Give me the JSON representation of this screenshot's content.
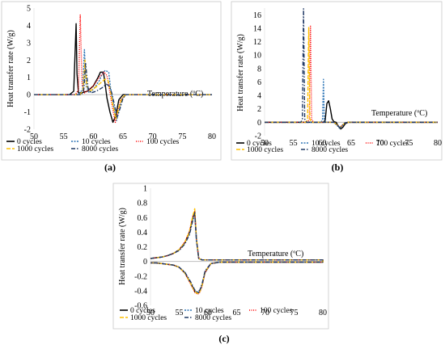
{
  "colors": {
    "0 cycles": "#000000",
    "10 cycles": "#2e75b6",
    "100 cycles": "#ff0000",
    "1000 cycles": "#ffc000",
    "8000 cycles": "#1f3864"
  },
  "chart_data": [
    {
      "type": "line",
      "caption": "(a)",
      "xlabel": "Temperature (ºC)",
      "ylabel": "Heat transfer rate (W/g)",
      "xlim": [
        50,
        80
      ],
      "ylim": [
        -2,
        5
      ],
      "xticks": [
        50,
        55,
        60,
        65,
        70,
        75,
        80
      ],
      "yticks": [
        -2,
        -1,
        0,
        1,
        2,
        3,
        4,
        5
      ],
      "series": [
        {
          "name": "0 cycles",
          "dash": "solid",
          "x": [
            50,
            56,
            56.7,
            57.1,
            57.25,
            57.5,
            58,
            59,
            60,
            60.8,
            61.2,
            61.7,
            62,
            62.3,
            62.8,
            63.3,
            63.8,
            64.3,
            65,
            80
          ],
          "y": [
            0,
            0,
            0.2,
            4.1,
            1.2,
            0.1,
            0.1,
            0.2,
            0.5,
            1.0,
            1.3,
            1.3,
            0.6,
            -0.2,
            -1.0,
            -1.6,
            -1.2,
            -0.3,
            0,
            0
          ]
        },
        {
          "name": "10 cycles",
          "dash": "2,1.5",
          "x": [
            50,
            57.5,
            58.2,
            58.5,
            58.8,
            59.3,
            60,
            61,
            61.5,
            62,
            62.6,
            62.9,
            63.4,
            63.9,
            64.3,
            64.8,
            65.5,
            80
          ],
          "y": [
            0,
            0,
            0.3,
            2.6,
            0.5,
            0.1,
            0.3,
            0.8,
            1.2,
            1.4,
            1.3,
            0.4,
            -0.6,
            -1.5,
            -1.0,
            -0.3,
            0,
            0
          ]
        },
        {
          "name": "100 cycles",
          "dash": "1,1.5",
          "x": [
            50,
            57,
            57.5,
            57.8,
            58.1,
            58.5,
            59,
            60,
            61,
            61.8,
            62.3,
            62.7,
            63.2,
            63.7,
            64.1,
            64.6,
            65.5,
            80
          ],
          "y": [
            0,
            0,
            0.3,
            4.6,
            0.6,
            0.1,
            0.2,
            0.5,
            1.0,
            1.3,
            1.1,
            0.3,
            -0.7,
            -1.6,
            -1.0,
            -0.3,
            0,
            0
          ]
        },
        {
          "name": "1000 cycles",
          "dash": "5,2",
          "x": [
            50,
            57.8,
            58.3,
            58.6,
            58.9,
            59.4,
            60.3,
            61.3,
            62,
            62.5,
            62.9,
            63.3,
            63.8,
            64.2,
            64.8,
            65.5,
            80
          ],
          "y": [
            0,
            0,
            0.3,
            2.0,
            0.5,
            0.2,
            0.4,
            0.7,
            0.9,
            0.8,
            0.2,
            -0.6,
            -1.4,
            -0.9,
            -0.2,
            0,
            0
          ]
        },
        {
          "name": "8000 cycles",
          "dash": "5,2,1.5,2",
          "x": [
            50,
            58,
            58.4,
            58.7,
            59.1,
            59.6,
            60.5,
            61.5,
            62.2,
            62.7,
            63.1,
            63.5,
            64,
            64.5,
            65,
            65.5,
            80
          ],
          "y": [
            0,
            0,
            0.3,
            1.8,
            0.4,
            0.1,
            0.2,
            0.4,
            0.6,
            0.5,
            0.1,
            -0.5,
            -1.3,
            -0.8,
            -0.2,
            0,
            0
          ]
        }
      ]
    },
    {
      "type": "line",
      "caption": "(b)",
      "xlabel": "Temperature (ºC)",
      "ylabel": "Heat transfer rate (W/g)",
      "xlim": [
        50,
        80
      ],
      "ylim": [
        -2,
        17
      ],
      "xticks": [
        50,
        55,
        60,
        65,
        70,
        75,
        80
      ],
      "yticks": [
        -2,
        0,
        2,
        4,
        6,
        8,
        10,
        12,
        14,
        16
      ],
      "series": [
        {
          "name": "0 cycles",
          "dash": "solid",
          "x": [
            50,
            60.2,
            60.5,
            60.8,
            61.1,
            61.4,
            61.7,
            62,
            62.4,
            62.8,
            63.2,
            63.6,
            64,
            64.5,
            80
          ],
          "y": [
            0,
            0,
            0.3,
            2.8,
            3.2,
            2.0,
            0.5,
            0.1,
            0,
            -0.6,
            -1.0,
            -0.7,
            -0.2,
            0,
            0
          ]
        },
        {
          "name": "10 cycles",
          "dash": "2,1.5",
          "x": [
            50,
            59.8,
            60.05,
            60.2,
            60.35,
            60.6,
            61,
            62,
            62.6,
            63,
            63.4,
            63.9,
            64.4,
            80
          ],
          "y": [
            0,
            0,
            0.5,
            6.4,
            0.5,
            0,
            0,
            0,
            -0.5,
            -0.9,
            -0.6,
            -0.1,
            0,
            0
          ]
        },
        {
          "name": "100 cycles",
          "dash": "1,1.5",
          "x": [
            50,
            57.5,
            57.75,
            57.95,
            58.15,
            58.45,
            59,
            62,
            62.6,
            63,
            63.4,
            63.9,
            64.4,
            80
          ],
          "y": [
            0,
            0,
            0.5,
            14.3,
            0.5,
            0,
            0,
            0,
            -0.4,
            -0.8,
            -0.5,
            -0.1,
            0,
            0
          ]
        },
        {
          "name": "1000 cycles",
          "dash": "5,2",
          "x": [
            50,
            57.2,
            57.45,
            57.65,
            57.85,
            58.15,
            59,
            62,
            62.6,
            63,
            63.4,
            63.9,
            64.4,
            80
          ],
          "y": [
            0,
            0,
            0.5,
            14.1,
            0.5,
            0,
            0,
            0,
            -0.4,
            -0.8,
            -0.5,
            -0.1,
            0,
            0
          ]
        },
        {
          "name": "8000 cycles",
          "dash": "5,2,1.5,2",
          "x": [
            50,
            56.3,
            56.55,
            56.75,
            56.95,
            57.25,
            58,
            62,
            62.6,
            63,
            63.4,
            63.9,
            64.4,
            80
          ],
          "y": [
            0,
            0,
            0.5,
            16.9,
            0.5,
            0,
            0,
            0,
            -0.4,
            -0.8,
            -0.5,
            -0.1,
            0,
            0
          ]
        }
      ]
    },
    {
      "type": "line",
      "caption": "(c)",
      "xlabel": "Temperature (ºC)",
      "ylabel": "Heat transfer rate (W/g)",
      "xlim": [
        50,
        80
      ],
      "ylim": [
        -0.6,
        1
      ],
      "xticks": [
        50,
        55,
        60,
        65,
        70,
        75,
        80
      ],
      "yticks": [
        -0.6,
        -0.4,
        -0.2,
        0,
        0.2,
        0.4,
        0.6,
        0.8,
        1
      ],
      "series": [
        {
          "name": "0 cycles",
          "dash": "solid",
          "x": [
            50,
            51,
            52,
            53,
            54,
            55,
            56,
            56.8,
            57.3,
            57.7,
            58,
            58.4,
            59,
            59.5,
            80,
            80,
            79,
            62,
            60.5,
            59.5,
            59,
            58.6,
            58.2,
            57.7,
            57,
            56,
            55,
            54,
            53,
            52,
            51,
            50
          ],
          "y": [
            0.04,
            0.05,
            0.06,
            0.08,
            0.11,
            0.16,
            0.26,
            0.4,
            0.58,
            0.68,
            0.3,
            0.04,
            0.02,
            0.02,
            0.02,
            -0.01,
            -0.01,
            -0.01,
            -0.03,
            -0.15,
            -0.32,
            -0.41,
            -0.44,
            -0.41,
            -0.3,
            -0.16,
            -0.08,
            -0.05,
            -0.04,
            -0.03,
            -0.02,
            -0.02
          ]
        },
        {
          "name": "10 cycles",
          "dash": "2,1.5",
          "x": [
            50,
            51,
            52,
            53,
            54,
            55,
            56,
            56.8,
            57.3,
            57.7,
            58,
            58.4,
            59,
            59.5,
            80,
            80,
            79,
            62,
            60.5,
            59.5,
            59,
            58.6,
            58.2,
            57.7,
            57,
            56,
            55,
            54,
            53,
            52,
            51,
            50
          ],
          "y": [
            0.04,
            0.05,
            0.06,
            0.08,
            0.11,
            0.15,
            0.25,
            0.38,
            0.55,
            0.65,
            0.29,
            0.04,
            0.02,
            0.02,
            0.02,
            -0.01,
            -0.01,
            -0.01,
            -0.03,
            -0.14,
            -0.31,
            -0.4,
            -0.43,
            -0.4,
            -0.29,
            -0.15,
            -0.08,
            -0.05,
            -0.04,
            -0.03,
            -0.02,
            -0.02
          ]
        },
        {
          "name": "100 cycles",
          "dash": "1,1.5",
          "x": [
            50,
            51,
            52,
            53,
            54,
            55,
            56,
            56.8,
            57.3,
            57.7,
            58,
            58.4,
            59,
            59.5,
            80,
            80,
            79,
            62,
            60.5,
            59.5,
            59,
            58.6,
            58.2,
            57.7,
            57,
            56,
            55,
            54,
            53,
            52,
            51,
            50
          ],
          "y": [
            0.04,
            0.05,
            0.06,
            0.08,
            0.11,
            0.16,
            0.27,
            0.42,
            0.6,
            0.69,
            0.31,
            0.04,
            0.02,
            0.02,
            0.02,
            -0.01,
            -0.01,
            -0.01,
            -0.03,
            -0.15,
            -0.33,
            -0.42,
            -0.45,
            -0.42,
            -0.31,
            -0.16,
            -0.08,
            -0.05,
            -0.04,
            -0.03,
            -0.02,
            -0.02
          ]
        },
        {
          "name": "1000 cycles",
          "dash": "5,2",
          "x": [
            50,
            51,
            52,
            53,
            54,
            55,
            56,
            56.8,
            57.3,
            57.7,
            58,
            58.4,
            59,
            59.5,
            80,
            80,
            79,
            62,
            60.5,
            59.5,
            59,
            58.6,
            58.2,
            57.7,
            57,
            56,
            55,
            54,
            53,
            52,
            51,
            50
          ],
          "y": [
            0.04,
            0.05,
            0.06,
            0.08,
            0.11,
            0.16,
            0.26,
            0.41,
            0.6,
            0.72,
            0.32,
            0.04,
            0.02,
            0.02,
            0.02,
            -0.01,
            -0.01,
            -0.01,
            -0.03,
            -0.14,
            -0.32,
            -0.41,
            -0.44,
            -0.41,
            -0.3,
            -0.16,
            -0.08,
            -0.05,
            -0.04,
            -0.03,
            -0.02,
            -0.02
          ]
        },
        {
          "name": "8000 cycles",
          "dash": "5,2,1.5,2",
          "x": [
            50,
            51,
            52,
            53,
            54,
            55,
            56,
            56.8,
            57.3,
            57.7,
            58,
            58.4,
            59,
            59.5,
            80,
            80,
            79,
            62,
            60.5,
            59.5,
            59,
            58.6,
            58.2,
            57.7,
            57,
            56,
            55,
            54,
            53,
            52,
            51,
            50
          ],
          "y": [
            0.04,
            0.05,
            0.06,
            0.08,
            0.11,
            0.15,
            0.24,
            0.37,
            0.54,
            0.66,
            0.29,
            0.04,
            0.02,
            0.02,
            0.02,
            -0.01,
            -0.01,
            -0.01,
            -0.03,
            -0.13,
            -0.3,
            -0.39,
            -0.42,
            -0.39,
            -0.28,
            -0.15,
            -0.08,
            -0.05,
            -0.04,
            -0.03,
            -0.02,
            -0.02
          ]
        }
      ]
    }
  ]
}
